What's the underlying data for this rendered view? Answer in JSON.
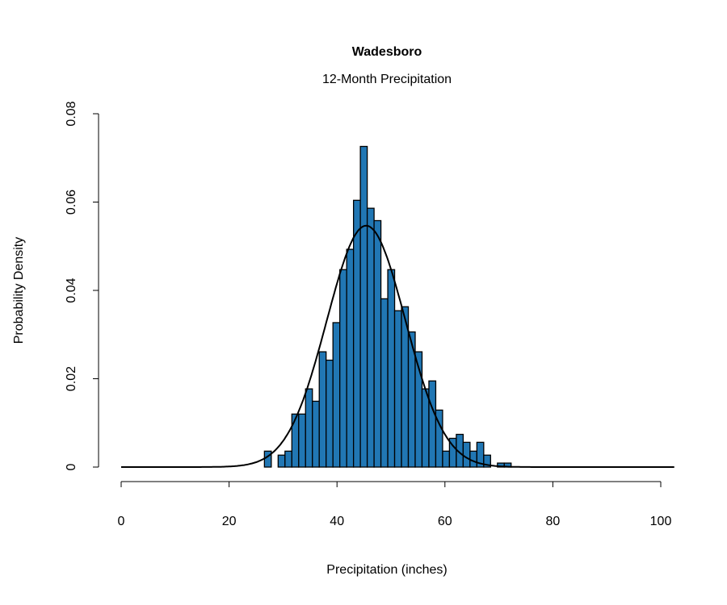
{
  "chart_data": {
    "type": "bar",
    "subtype": "histogram-with-density-curve",
    "title": "Wadesboro",
    "subtitle": "12-Month Precipitation",
    "xlabel": "Precipitation (inches)",
    "ylabel": "Probability Density",
    "xlim": [
      0,
      100
    ],
    "ylim": [
      0,
      0.08
    ],
    "xticks": [
      "0",
      "20",
      "40",
      "60",
      "80",
      "100"
    ],
    "xtick_values": [
      0,
      20,
      40,
      60,
      80,
      100
    ],
    "yticks": [
      "0",
      "0.02",
      "0.04",
      "0.06",
      "0.08"
    ],
    "ytick_values": [
      0,
      0.02,
      0.04,
      0.06,
      0.08
    ],
    "bin_start": 26.55,
    "bin_width": 1.27,
    "densities": [
      0.0036,
      0,
      0.0027,
      0.0036,
      0.012,
      0.012,
      0.0177,
      0.0149,
      0.0261,
      0.0242,
      0.0327,
      0.0447,
      0.0493,
      0.0604,
      0.0726,
      0.0586,
      0.0558,
      0.0381,
      0.0447,
      0.0354,
      0.0363,
      0.0306,
      0.0261,
      0.0177,
      0.0195,
      0.0129,
      0.0036,
      0.0065,
      0.0074,
      0.0056,
      0.0036,
      0.0056,
      0.0027,
      0,
      0.0009,
      0.0009
    ],
    "bar_color": "#2177b4",
    "normal_curve": {
      "mean": 45.4,
      "sd": 7.3,
      "x_range": [
        0,
        102.7
      ]
    },
    "grid": false
  }
}
